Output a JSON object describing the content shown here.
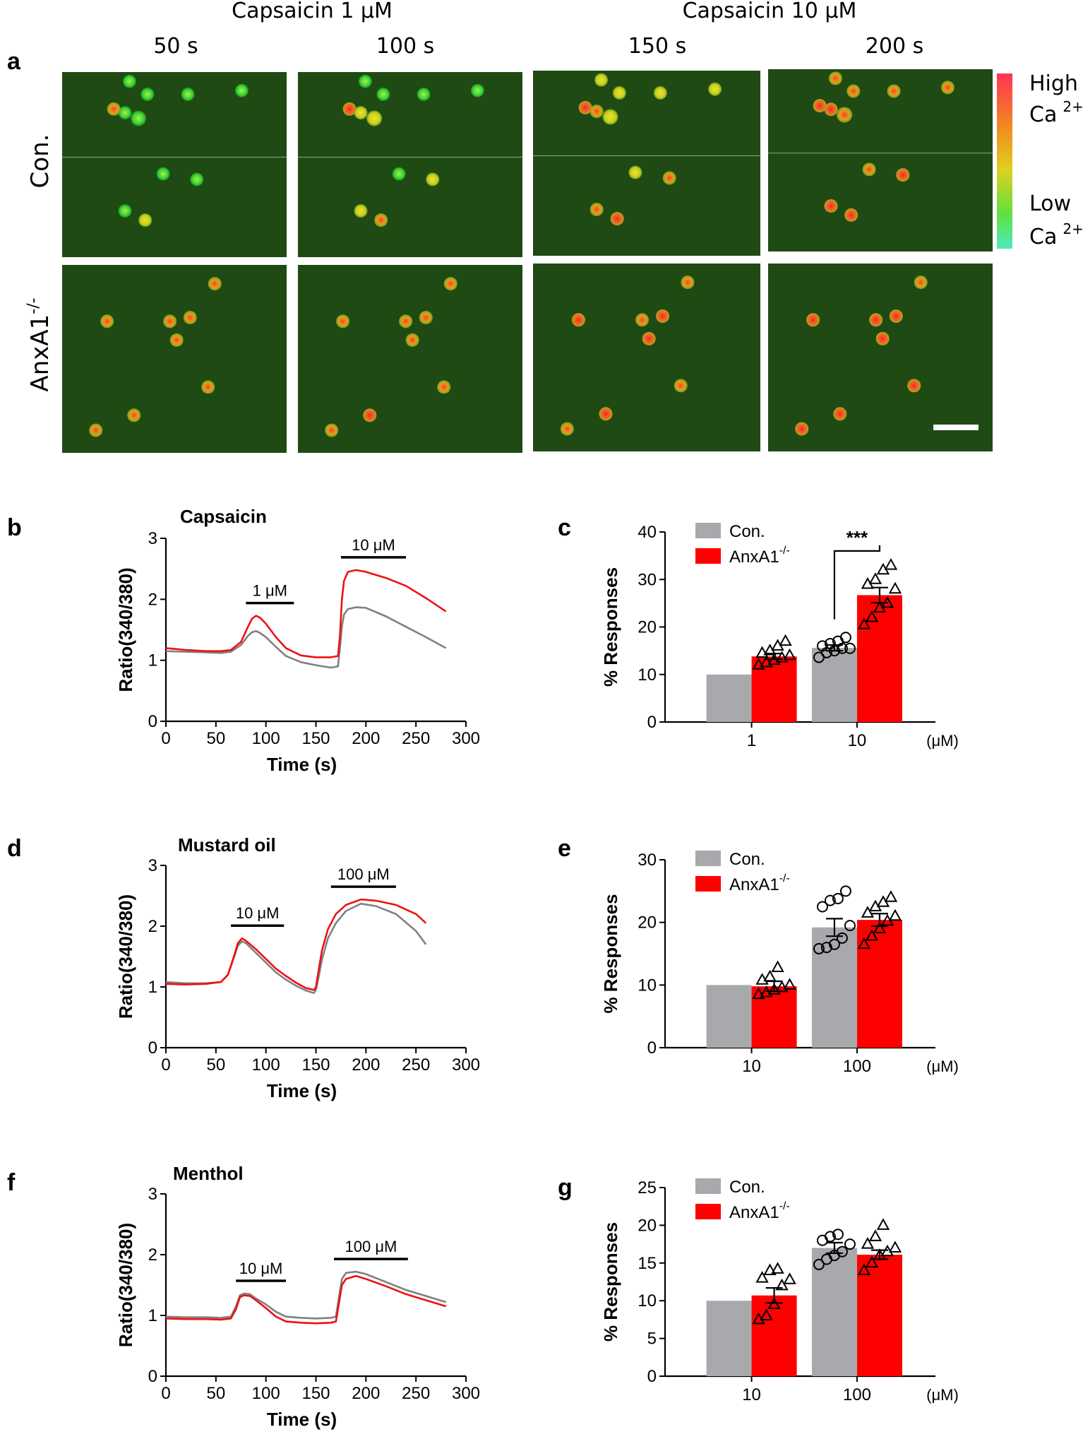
{
  "panel_a": {
    "letter": "a",
    "header_groups": [
      "Capsaicin 1 μM",
      "Capsaicin 10 μM"
    ],
    "time_labels": [
      "50 s",
      "100 s",
      "150 s",
      "200 s"
    ],
    "row_labels": [
      "Con.",
      "AnxA1"
    ],
    "row_label_superscript": "-/-",
    "scale_high": "High",
    "scale_low": "Low",
    "scale_ion": "Ca",
    "scale_ion_superscript": "2+",
    "colors": {
      "background": "#1f4a14",
      "high": "#ff3355",
      "mid": "#e0d020",
      "low": "#50e8c0",
      "cell_green": "#39d23a"
    }
  },
  "chart_data": [
    {
      "id": "b",
      "letter": "b",
      "type": "line",
      "title": "Capsaicin",
      "xlabel": "Time (s)",
      "ylabel": "Ratio(340/380)",
      "xlim": [
        0,
        300
      ],
      "ylim": [
        0,
        3
      ],
      "xticks": [
        0,
        50,
        100,
        150,
        200,
        250,
        300
      ],
      "yticks": [
        0,
        1,
        2,
        3
      ],
      "stimuli": [
        {
          "label": "1 μM",
          "start": 80,
          "end": 128
        },
        {
          "label": "10 μM",
          "start": 175,
          "end": 240
        }
      ],
      "series": [
        {
          "color": "#ee1111",
          "x": [
            0,
            20,
            40,
            55,
            65,
            75,
            82,
            86,
            90,
            94,
            100,
            110,
            120,
            135,
            150,
            165,
            172,
            174,
            176,
            178,
            182,
            190,
            200,
            220,
            240,
            260,
            280
          ],
          "y": [
            1.2,
            1.17,
            1.15,
            1.15,
            1.17,
            1.3,
            1.55,
            1.68,
            1.73,
            1.7,
            1.6,
            1.38,
            1.2,
            1.08,
            1.05,
            1.05,
            1.07,
            1.4,
            2.0,
            2.3,
            2.45,
            2.48,
            2.45,
            2.35,
            2.22,
            2.02,
            1.8
          ]
        },
        {
          "color": "#808080",
          "x": [
            0,
            20,
            40,
            55,
            65,
            75,
            82,
            86,
            90,
            94,
            100,
            110,
            120,
            135,
            150,
            165,
            172,
            174,
            176,
            178,
            182,
            190,
            200,
            220,
            240,
            260,
            280
          ],
          "y": [
            1.15,
            1.14,
            1.13,
            1.12,
            1.14,
            1.25,
            1.4,
            1.46,
            1.48,
            1.45,
            1.38,
            1.22,
            1.07,
            0.97,
            0.92,
            0.88,
            0.9,
            1.2,
            1.55,
            1.75,
            1.84,
            1.87,
            1.86,
            1.72,
            1.55,
            1.38,
            1.2
          ]
        }
      ]
    },
    {
      "id": "c",
      "letter": "c",
      "type": "bar",
      "ylabel": "% Responses",
      "unit": "(μM)",
      "categories": [
        "1",
        "10"
      ],
      "ylim": [
        0,
        40
      ],
      "yticks": [
        0,
        10,
        20,
        30,
        40
      ],
      "series": [
        {
          "name": "Con.",
          "color": "#a7a9ac",
          "values": [
            10,
            15.6
          ],
          "errors": [
            0,
            0.6
          ],
          "points": [
            [],
            [
              13.6,
              14.6,
              15,
              15.5,
              15.5,
              16,
              16.5,
              17,
              17.8
            ]
          ],
          "marker": "circle"
        },
        {
          "name": "AnxA1",
          "name_superscript": "-/-",
          "color": "#ff0000",
          "values": [
            13.8,
            26.7
          ],
          "errors": [
            0.6,
            1.6
          ],
          "points": [
            [
              12,
              12.5,
              13,
              13.5,
              14,
              14.5,
              15,
              16,
              17
            ],
            [
              20.5,
              22,
              24,
              25,
              28,
              29,
              30,
              32,
              33
            ]
          ],
          "marker": "triangle"
        }
      ],
      "significance": {
        "label": "***",
        "category": 1
      }
    },
    {
      "id": "d",
      "letter": "d",
      "type": "line",
      "title": "Mustard oil",
      "xlabel": "Time (s)",
      "ylabel": "Ratio(340/380)",
      "xlim": [
        0,
        300
      ],
      "ylim": [
        0,
        3
      ],
      "xticks": [
        0,
        50,
        100,
        150,
        200,
        250,
        300
      ],
      "yticks": [
        0,
        1,
        2,
        3
      ],
      "stimuli": [
        {
          "label": "10 μM",
          "start": 65,
          "end": 118
        },
        {
          "label": "100 μM",
          "start": 165,
          "end": 230
        }
      ],
      "series": [
        {
          "color": "#ee1111",
          "x": [
            0,
            20,
            40,
            55,
            62,
            68,
            72,
            76,
            80,
            90,
            100,
            110,
            120,
            130,
            140,
            148,
            150,
            152,
            156,
            162,
            170,
            180,
            195,
            210,
            230,
            250,
            260
          ],
          "y": [
            1.05,
            1.04,
            1.05,
            1.08,
            1.2,
            1.5,
            1.72,
            1.8,
            1.76,
            1.62,
            1.46,
            1.3,
            1.18,
            1.07,
            0.98,
            0.95,
            1.0,
            1.2,
            1.6,
            1.95,
            2.2,
            2.35,
            2.44,
            2.42,
            2.35,
            2.2,
            2.05
          ]
        },
        {
          "color": "#808080",
          "x": [
            0,
            20,
            40,
            55,
            62,
            68,
            72,
            76,
            80,
            90,
            100,
            110,
            120,
            130,
            140,
            148,
            150,
            152,
            156,
            162,
            170,
            180,
            195,
            210,
            230,
            250,
            260
          ],
          "y": [
            1.08,
            1.06,
            1.06,
            1.08,
            1.2,
            1.48,
            1.68,
            1.75,
            1.72,
            1.56,
            1.4,
            1.24,
            1.12,
            1.02,
            0.94,
            0.9,
            0.95,
            1.1,
            1.45,
            1.8,
            2.05,
            2.25,
            2.37,
            2.33,
            2.2,
            1.92,
            1.7
          ]
        }
      ]
    },
    {
      "id": "e",
      "letter": "e",
      "type": "bar",
      "ylabel": "% Responses",
      "unit": "(μM)",
      "categories": [
        "10",
        "100"
      ],
      "ylim": [
        0,
        30
      ],
      "yticks": [
        0,
        10,
        20,
        30
      ],
      "series": [
        {
          "name": "Con.",
          "color": "#a7a9ac",
          "values": [
            10,
            19.2
          ],
          "errors": [
            0,
            1.4
          ],
          "points": [
            [],
            [
              15.8,
              16,
              16.5,
              17.5,
              19.5,
              22.5,
              23.5,
              23.8,
              25
            ]
          ],
          "marker": "circle"
        },
        {
          "name": "AnxA1",
          "name_superscript": "-/-",
          "color": "#ff0000",
          "values": [
            9.8,
            20.4
          ],
          "errors": [
            0.8,
            1.0
          ],
          "points": [
            [
              8.5,
              8.8,
              9.2,
              9.6,
              10,
              10.8,
              11.3,
              12.8
            ],
            [
              16.5,
              17.8,
              19,
              20.2,
              21,
              21.5,
              22.5,
              23.2,
              24
            ]
          ],
          "marker": "triangle"
        }
      ]
    },
    {
      "id": "f",
      "letter": "f",
      "type": "line",
      "title": "Menthol",
      "xlabel": "Time (s)",
      "ylabel": "Ratio(340/380)",
      "xlim": [
        0,
        300
      ],
      "ylim": [
        0,
        3
      ],
      "xticks": [
        0,
        50,
        100,
        150,
        200,
        250,
        300
      ],
      "yticks": [
        0,
        1,
        2,
        3
      ],
      "stimuli": [
        {
          "label": "10 μM",
          "start": 70,
          "end": 120
        },
        {
          "label": "100 μM",
          "start": 168,
          "end": 242
        }
      ],
      "series": [
        {
          "color": "#ee1111",
          "x": [
            0,
            20,
            40,
            55,
            65,
            70,
            74,
            78,
            84,
            90,
            100,
            110,
            120,
            135,
            150,
            165,
            170,
            173,
            176,
            180,
            190,
            200,
            220,
            240,
            260,
            280
          ],
          "y": [
            0.95,
            0.94,
            0.94,
            0.93,
            0.95,
            1.1,
            1.3,
            1.33,
            1.32,
            1.25,
            1.12,
            0.98,
            0.9,
            0.88,
            0.87,
            0.88,
            0.9,
            1.2,
            1.5,
            1.6,
            1.65,
            1.6,
            1.48,
            1.35,
            1.25,
            1.15
          ]
        },
        {
          "color": "#808080",
          "x": [
            0,
            20,
            40,
            55,
            65,
            70,
            74,
            78,
            84,
            90,
            100,
            110,
            120,
            135,
            150,
            165,
            170,
            173,
            176,
            180,
            190,
            200,
            220,
            240,
            260,
            280
          ],
          "y": [
            0.98,
            0.97,
            0.97,
            0.96,
            0.98,
            1.15,
            1.33,
            1.36,
            1.35,
            1.28,
            1.18,
            1.06,
            0.98,
            0.96,
            0.95,
            0.96,
            0.98,
            1.3,
            1.6,
            1.7,
            1.72,
            1.68,
            1.55,
            1.42,
            1.32,
            1.22
          ]
        }
      ]
    },
    {
      "id": "g",
      "letter": "g",
      "type": "bar",
      "ylabel": "% Responses",
      "unit": "(μM)",
      "categories": [
        "10",
        "100"
      ],
      "ylim": [
        0,
        25
      ],
      "yticks": [
        0,
        5,
        10,
        15,
        20,
        25
      ],
      "series": [
        {
          "name": "Con.",
          "color": "#a7a9ac",
          "values": [
            10,
            17
          ],
          "errors": [
            0,
            0.7
          ],
          "points": [
            [],
            [
              14.8,
              15.5,
              16,
              16.5,
              17.5,
              18,
              18.5,
              18.8
            ]
          ],
          "marker": "circle"
        },
        {
          "name": "AnxA1",
          "name_superscript": "-/-",
          "color": "#ff0000",
          "values": [
            10.7,
            16.1
          ],
          "errors": [
            1.0,
            0.6
          ],
          "points": [
            [
              7.5,
              8,
              9.5,
              12,
              12.8,
              13,
              14,
              14.2
            ],
            [
              14,
              15,
              16,
              16.5,
              17,
              17.5,
              18.5,
              20
            ]
          ],
          "marker": "triangle"
        }
      ]
    }
  ]
}
